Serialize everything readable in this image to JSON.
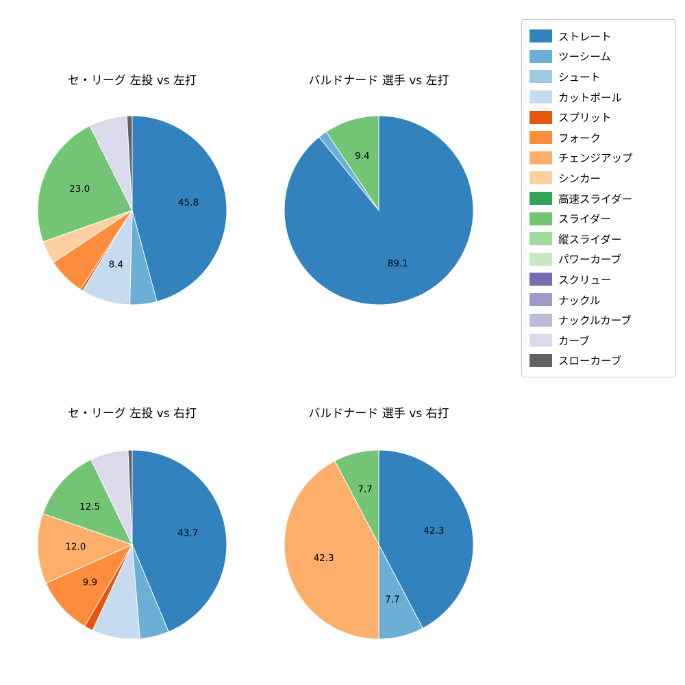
{
  "figure": {
    "background": "#ffffff"
  },
  "legend": {
    "position": "right",
    "items": [
      {
        "label": "ストレート",
        "color": "#3182bd"
      },
      {
        "label": "ツーシーム",
        "color": "#6baed6"
      },
      {
        "label": "シュート",
        "color": "#9ecae1"
      },
      {
        "label": "カットボール",
        "color": "#c6dbef"
      },
      {
        "label": "スプリット",
        "color": "#e6550d"
      },
      {
        "label": "フォーク",
        "color": "#fd8d3c"
      },
      {
        "label": "チェンジアップ",
        "color": "#fdae6b"
      },
      {
        "label": "シンカー",
        "color": "#fdd0a2"
      },
      {
        "label": "高速スライダー",
        "color": "#31a354"
      },
      {
        "label": "スライダー",
        "color": "#74c476"
      },
      {
        "label": "縦スライダー",
        "color": "#a1d99b"
      },
      {
        "label": "パワーカーブ",
        "color": "#c7e9c0"
      },
      {
        "label": "スクリュー",
        "color": "#756bb1"
      },
      {
        "label": "ナックル",
        "color": "#9e9ac8"
      },
      {
        "label": "ナックルカーブ",
        "color": "#bcbddc"
      },
      {
        "label": "カーブ",
        "color": "#dadaeb"
      },
      {
        "label": "スローカーブ",
        "color": "#636363"
      }
    ]
  },
  "chart_data": [
    {
      "type": "pie",
      "title": "セ・リーグ 左投 vs 左打",
      "start_angle": "top",
      "direction": "clockwise",
      "slices": [
        {
          "name": "ストレート",
          "value": 45.8,
          "label": "45.8",
          "color": "#3182bd"
        },
        {
          "name": "ツーシーム",
          "value": 4.6,
          "label": "",
          "color": "#6baed6"
        },
        {
          "name": "カットボール",
          "value": 8.4,
          "label": "8.4",
          "color": "#c6dbef"
        },
        {
          "name": "スプリット",
          "value": 0.4,
          "label": "",
          "color": "#e6550d"
        },
        {
          "name": "フォーク",
          "value": 6.5,
          "label": "",
          "color": "#fd8d3c"
        },
        {
          "name": "シンカー",
          "value": 3.9,
          "label": "",
          "color": "#fdd0a2"
        },
        {
          "name": "スライダー",
          "value": 23.0,
          "label": "23.0",
          "color": "#74c476"
        },
        {
          "name": "カーブ",
          "value": 6.5,
          "label": "",
          "color": "#dadaeb"
        },
        {
          "name": "スローカーブ",
          "value": 0.9,
          "label": "",
          "color": "#636363"
        }
      ]
    },
    {
      "type": "pie",
      "title": "バルドナード 選手 vs 左打",
      "start_angle": "top",
      "direction": "clockwise",
      "slices": [
        {
          "name": "ストレート",
          "value": 89.1,
          "label": "89.1",
          "color": "#3182bd"
        },
        {
          "name": "ツーシーム",
          "value": 1.5,
          "label": "",
          "color": "#6baed6"
        },
        {
          "name": "スライダー",
          "value": 9.4,
          "label": "9.4",
          "color": "#74c476"
        }
      ]
    },
    {
      "type": "pie",
      "title": "セ・リーグ 左投 vs 右打",
      "start_angle": "top",
      "direction": "clockwise",
      "slices": [
        {
          "name": "ストレート",
          "value": 43.7,
          "label": "43.7",
          "color": "#3182bd"
        },
        {
          "name": "ツーシーム",
          "value": 5.0,
          "label": "",
          "color": "#6baed6"
        },
        {
          "name": "カットボール",
          "value": 8.2,
          "label": "",
          "color": "#c6dbef"
        },
        {
          "name": "スプリット",
          "value": 1.5,
          "label": "",
          "color": "#e6550d"
        },
        {
          "name": "フォーク",
          "value": 9.9,
          "label": "9.9",
          "color": "#fd8d3c"
        },
        {
          "name": "チェンジアップ",
          "value": 12.0,
          "label": "12.0",
          "color": "#fdae6b"
        },
        {
          "name": "スライダー",
          "value": 12.5,
          "label": "12.5",
          "color": "#74c476"
        },
        {
          "name": "カーブ",
          "value": 6.5,
          "label": "",
          "color": "#dadaeb"
        },
        {
          "name": "スローカーブ",
          "value": 0.7,
          "label": "",
          "color": "#636363"
        }
      ]
    },
    {
      "type": "pie",
      "title": "バルドナード 選手 vs 右打",
      "start_angle": "top",
      "direction": "clockwise",
      "slices": [
        {
          "name": "ストレート",
          "value": 42.3,
          "label": "42.3",
          "color": "#3182bd"
        },
        {
          "name": "ツーシーム",
          "value": 7.7,
          "label": "7.7",
          "color": "#6baed6"
        },
        {
          "name": "チェンジアップ",
          "value": 42.3,
          "label": "42.3",
          "color": "#fdae6b"
        },
        {
          "name": "スライダー",
          "value": 7.7,
          "label": "7.7",
          "color": "#74c476"
        }
      ]
    }
  ]
}
